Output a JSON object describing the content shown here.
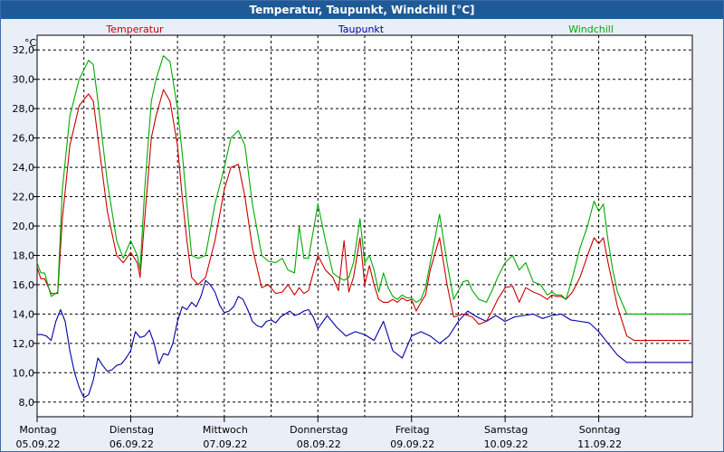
{
  "window": {
    "title": "Temperatur, Taupunkt, Windchill [°C]"
  },
  "chart_data": {
    "type": "line",
    "title": "Temperatur, Taupunkt, Windchill [°C]",
    "ylabel": "°C",
    "xlabel": "",
    "ylim": [
      7.0,
      33.0
    ],
    "yticks": [
      8,
      10,
      12,
      14,
      16,
      18,
      20,
      22,
      24,
      26,
      28,
      30,
      32
    ],
    "ytick_labels": [
      "8,0",
      "10,0",
      "12,0",
      "14,0",
      "16,0",
      "18,0",
      "20,0",
      "22,0",
      "24,0",
      "26,0",
      "28,0",
      "30,0",
      "32,0"
    ],
    "grid": true,
    "xlim": [
      0,
      7
    ],
    "days": [
      {
        "weekday": "Montag",
        "date": "05.09.22"
      },
      {
        "weekday": "Dienstag",
        "date": "06.09.22"
      },
      {
        "weekday": "Mittwoch",
        "date": "07.09.22"
      },
      {
        "weekday": "Donnerstag",
        "date": "08.09.22"
      },
      {
        "weekday": "Freitag",
        "date": "09.09.22"
      },
      {
        "weekday": "Samstag",
        "date": "10.09.22"
      },
      {
        "weekday": "Sonntag",
        "date": "11.09.22"
      }
    ],
    "colors": {
      "Temperatur": "#cc0000",
      "Taupunkt": "#0000aa",
      "Windchill": "#00aa00"
    },
    "series": [
      {
        "name": "Temperatur",
        "x": [
          0,
          0.04,
          0.08,
          0.15,
          0.22,
          0.27,
          0.35,
          0.45,
          0.55,
          0.6,
          0.65,
          0.75,
          0.85,
          0.92,
          1.0,
          1.07,
          1.1,
          1.15,
          1.22,
          1.27,
          1.35,
          1.42,
          1.5,
          1.55,
          1.6,
          1.65,
          1.72,
          1.8,
          1.9,
          2.0,
          2.07,
          2.15,
          2.22,
          2.3,
          2.4,
          2.47,
          2.55,
          2.62,
          2.68,
          2.75,
          2.8,
          2.85,
          2.9,
          3.0,
          3.08,
          3.16,
          3.22,
          3.28,
          3.33,
          3.38,
          3.45,
          3.5,
          3.55,
          3.6,
          3.65,
          3.7,
          3.75,
          3.8,
          3.85,
          3.9,
          3.95,
          4.0,
          4.05,
          4.1,
          4.15,
          4.2,
          4.3,
          4.38,
          4.45,
          4.55,
          4.6,
          4.65,
          4.72,
          4.8,
          4.86,
          4.92,
          5.0,
          5.08,
          5.15,
          5.22,
          5.3,
          5.38,
          5.45,
          5.5,
          5.55,
          5.6,
          5.65,
          5.72,
          5.8,
          5.88,
          5.95,
          6.0,
          6.05,
          6.1,
          6.15,
          6.2,
          6.3,
          6.38,
          6.45,
          6.52,
          6.57,
          6.6,
          6.65,
          6.7,
          6.78,
          6.85,
          6.92,
          6.97
        ],
        "values": [
          17.2,
          16.4,
          16.4,
          15.4,
          15.4,
          20.5,
          25.5,
          28.2,
          29.0,
          28.5,
          26.0,
          21.0,
          18.0,
          17.5,
          18.2,
          17.5,
          16.5,
          20.5,
          26.0,
          27.5,
          29.3,
          28.5,
          25.5,
          22.0,
          19.0,
          16.5,
          16.0,
          16.5,
          19.0,
          22.5,
          24.0,
          24.2,
          22.0,
          18.5,
          15.8,
          16.0,
          15.4,
          15.5,
          16.0,
          15.3,
          15.8,
          15.4,
          15.6,
          18.0,
          17.0,
          16.5,
          15.6,
          19.0,
          15.5,
          16.5,
          19.2,
          16.0,
          17.3,
          16.0,
          15.0,
          14.8,
          14.8,
          15.0,
          14.8,
          15.1,
          14.9,
          15.0,
          14.2,
          14.8,
          15.3,
          17.0,
          19.2,
          16.0,
          13.8,
          14.0,
          13.9,
          13.8,
          13.3,
          13.5,
          14.2,
          15.0,
          15.8,
          15.9,
          14.8,
          15.8,
          15.5,
          15.3,
          15.0,
          15.3,
          15.2,
          15.2,
          15.0,
          15.5,
          16.5,
          18.0,
          19.2,
          18.8,
          19.2,
          17.5,
          16.0,
          14.5,
          12.5,
          12.2,
          12.2,
          12.2,
          12.2,
          12.2,
          12.2,
          12.2,
          12.2,
          12.2,
          12.2,
          12.2
        ]
      },
      {
        "name": "Taupunkt",
        "x": [
          0,
          0.05,
          0.1,
          0.15,
          0.2,
          0.25,
          0.3,
          0.35,
          0.4,
          0.45,
          0.5,
          0.55,
          0.6,
          0.65,
          0.7,
          0.75,
          0.8,
          0.85,
          0.9,
          0.95,
          1.0,
          1.05,
          1.1,
          1.15,
          1.2,
          1.25,
          1.3,
          1.35,
          1.4,
          1.45,
          1.5,
          1.55,
          1.6,
          1.65,
          1.7,
          1.75,
          1.8,
          1.85,
          1.9,
          1.95,
          2.0,
          2.05,
          2.1,
          2.15,
          2.2,
          2.25,
          2.3,
          2.35,
          2.4,
          2.45,
          2.5,
          2.55,
          2.6,
          2.65,
          2.7,
          2.75,
          2.8,
          2.85,
          2.9,
          2.95,
          3.0,
          3.1,
          3.2,
          3.3,
          3.4,
          3.5,
          3.6,
          3.7,
          3.8,
          3.9,
          4.0,
          4.1,
          4.2,
          4.3,
          4.4,
          4.5,
          4.6,
          4.7,
          4.8,
          4.9,
          5.0,
          5.1,
          5.2,
          5.3,
          5.4,
          5.5,
          5.6,
          5.7,
          5.8,
          5.9,
          6.0,
          6.1,
          6.2,
          6.3,
          6.4,
          6.5,
          6.6,
          6.7,
          6.8,
          6.9,
          7.0
        ],
        "values": [
          12.6,
          12.6,
          12.5,
          12.2,
          13.5,
          14.3,
          13.5,
          11.5,
          10.0,
          9.0,
          8.3,
          8.5,
          9.5,
          11.0,
          10.5,
          10.1,
          10.2,
          10.5,
          10.6,
          11.0,
          11.5,
          12.8,
          12.4,
          12.5,
          12.9,
          12.0,
          10.6,
          11.3,
          11.2,
          12.0,
          13.5,
          14.5,
          14.3,
          14.8,
          14.5,
          15.2,
          16.3,
          16.0,
          15.5,
          14.6,
          14.1,
          14.2,
          14.5,
          15.2,
          15.0,
          14.3,
          13.5,
          13.2,
          13.1,
          13.5,
          13.6,
          13.4,
          13.8,
          14.0,
          14.2,
          13.9,
          14.0,
          14.2,
          14.3,
          13.8,
          13.0,
          13.9,
          13.1,
          12.5,
          12.8,
          12.6,
          12.2,
          13.5,
          11.5,
          11.0,
          12.5,
          12.8,
          12.5,
          12.0,
          12.5,
          13.5,
          14.2,
          13.8,
          13.5,
          13.9,
          13.5,
          13.8,
          13.9,
          14.0,
          13.7,
          13.9,
          14.0,
          13.6,
          13.5,
          13.4,
          12.8,
          12.0,
          11.2,
          10.7,
          10.7,
          10.7,
          10.7,
          10.7,
          10.7,
          10.7,
          10.7
        ]
      },
      {
        "name": "Windchill",
        "x": [
          0,
          0.04,
          0.08,
          0.15,
          0.22,
          0.27,
          0.35,
          0.45,
          0.55,
          0.6,
          0.65,
          0.75,
          0.85,
          0.92,
          1.0,
          1.07,
          1.1,
          1.15,
          1.22,
          1.27,
          1.35,
          1.42,
          1.5,
          1.55,
          1.6,
          1.65,
          1.72,
          1.8,
          1.9,
          2.0,
          2.07,
          2.15,
          2.22,
          2.3,
          2.4,
          2.47,
          2.55,
          2.62,
          2.68,
          2.75,
          2.8,
          2.85,
          2.9,
          3.0,
          3.08,
          3.16,
          3.22,
          3.28,
          3.33,
          3.38,
          3.45,
          3.5,
          3.55,
          3.6,
          3.65,
          3.7,
          3.75,
          3.8,
          3.85,
          3.9,
          3.95,
          4.0,
          4.05,
          4.1,
          4.15,
          4.2,
          4.3,
          4.38,
          4.45,
          4.55,
          4.6,
          4.65,
          4.72,
          4.8,
          4.86,
          4.92,
          5.0,
          5.08,
          5.15,
          5.22,
          5.3,
          5.38,
          5.45,
          5.5,
          5.55,
          5.6,
          5.65,
          5.72,
          5.8,
          5.88,
          5.95,
          6.0,
          6.05,
          6.1,
          6.15,
          6.2,
          6.3,
          6.38,
          6.45,
          6.52,
          6.57,
          6.6,
          6.65,
          6.7,
          6.78,
          6.85,
          6.92,
          6.97
        ],
        "values": [
          17.5,
          16.8,
          16.8,
          15.2,
          15.5,
          22.5,
          27.5,
          30.0,
          31.3,
          31.0,
          28.5,
          23.0,
          19.0,
          17.8,
          19.0,
          18.0,
          17.0,
          22.5,
          28.5,
          30.0,
          31.6,
          31.2,
          28.0,
          25.0,
          21.5,
          18.0,
          17.8,
          18.0,
          21.5,
          24.0,
          26.0,
          26.5,
          25.5,
          21.5,
          18.0,
          17.6,
          17.5,
          17.8,
          17.0,
          16.8,
          20.0,
          17.8,
          17.8,
          21.5,
          19.0,
          16.8,
          16.5,
          16.3,
          16.5,
          17.5,
          20.5,
          17.5,
          18.0,
          17.0,
          15.5,
          16.8,
          15.8,
          15.2,
          15.0,
          15.3,
          15.1,
          15.1,
          14.8,
          15.0,
          15.8,
          17.5,
          20.8,
          17.5,
          15.0,
          16.2,
          16.3,
          15.6,
          15.0,
          14.8,
          15.6,
          16.5,
          17.5,
          18.0,
          17.0,
          17.5,
          16.2,
          16.0,
          15.3,
          15.5,
          15.3,
          15.3,
          15.0,
          16.5,
          18.5,
          20.0,
          21.7,
          21.0,
          21.5,
          19.0,
          17.0,
          15.5,
          14.0,
          14.0,
          14.0,
          14.0,
          14.0,
          14.0,
          14.0,
          14.0,
          14.0,
          14.0,
          14.0,
          14.0
        ]
      }
    ]
  }
}
